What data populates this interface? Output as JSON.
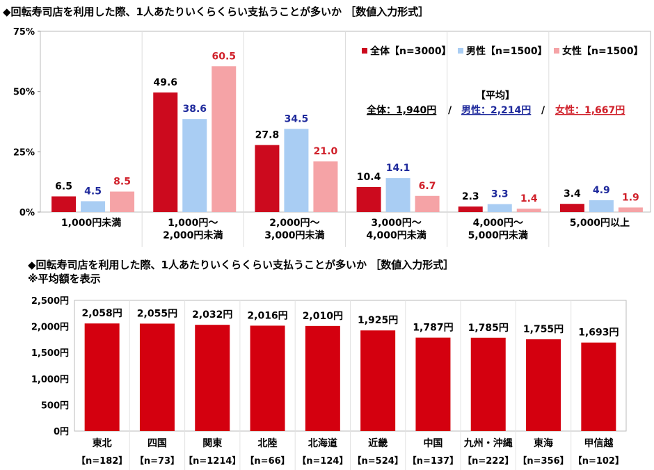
{
  "chart_data": [
    {
      "type": "bar",
      "title": "◆回転寿司店を利用した際、1人あたりいくらくらい支払うことが多いか ［数値入力形式］",
      "ylim": [
        0,
        75
      ],
      "yticks": [
        "0%",
        "25%",
        "50%",
        "75%"
      ],
      "categories": [
        [
          "1,000円未満"
        ],
        [
          "1,000円～",
          "2,000円未満"
        ],
        [
          "2,000円～",
          "3,000円未満"
        ],
        [
          "3,000円～",
          "4,000円未満"
        ],
        [
          "4,000円～",
          "5,000円未満"
        ],
        [
          "5,000円以上"
        ]
      ],
      "series": [
        {
          "name": "全体【n=3000】",
          "color": "#cc0a1e",
          "label_color": "#000000",
          "values": [
            6.5,
            49.6,
            27.8,
            10.4,
            2.3,
            3.4
          ]
        },
        {
          "name": "男性【n=1500】",
          "color": "#a9cdf3",
          "label_color": "#1f2a9c",
          "values": [
            4.5,
            38.6,
            34.5,
            14.1,
            3.3,
            4.9
          ]
        },
        {
          "name": "女性【n=1500】",
          "color": "#f5a3a6",
          "label_color": "#d0202a",
          "values": [
            8.5,
            60.5,
            21.0,
            6.7,
            1.4,
            1.9
          ]
        }
      ],
      "legend": "top-right",
      "average": {
        "heading": "【平均】",
        "overall": "全体：1,940円",
        "male": "男性：2,214円",
        "female": "女性：1,667円",
        "sep": "/"
      }
    },
    {
      "type": "bar",
      "title": "◆回転寿司店を利用した際、1人あたりいくらくらい支払うことが多いか ［数値入力形式］",
      "subtitle": "※平均額を表示",
      "ylim": [
        0,
        2500
      ],
      "yticks": [
        "0円",
        "500円",
        "1,000円",
        "1,500円",
        "2,000円",
        "2,500円"
      ],
      "categories": [
        "東北",
        "四国",
        "関東",
        "北陸",
        "北海道",
        "近畿",
        "中国",
        "九州・沖縄",
        "東海",
        "甲信越"
      ],
      "n_labels": [
        "【n=182】",
        "【n=73】",
        "【n=1214】",
        "【n=66】",
        "【n=124】",
        "【n=524】",
        "【n=137】",
        "【n=222】",
        "【n=356】",
        "【n=102】"
      ],
      "values": [
        2058,
        2055,
        2032,
        2016,
        2010,
        1925,
        1787,
        1785,
        1755,
        1693
      ],
      "value_labels": [
        "2,058円",
        "2,055円",
        "2,032円",
        "2,016円",
        "2,010円",
        "1,925円",
        "1,787円",
        "1,785円",
        "1,755円",
        "1,693円"
      ],
      "color": "#d4000f"
    }
  ]
}
